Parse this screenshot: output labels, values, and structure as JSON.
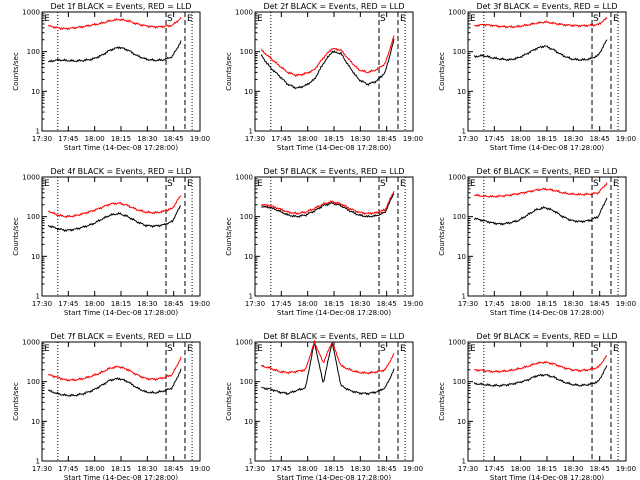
{
  "chart_data": [
    {
      "type": "line",
      "title": "Det 1f BLACK = Events, RED = LLD",
      "xlabel": "Start Time (14-Dec-08 17:28:00)",
      "ylabel": "Counts/sec",
      "yscale": "log",
      "ylim": [
        1,
        1000
      ],
      "x_ticks": [
        "17:30",
        "17:45",
        "18:00",
        "18:15",
        "18:30",
        "18:45",
        "19:00"
      ],
      "y_ticks": [
        "1",
        "10",
        "100",
        "1000"
      ],
      "markers": {
        "E_left": "E",
        "S": "S",
        "E_right": "E"
      },
      "series": [
        {
          "color": "#000000",
          "values": [
            55,
            62,
            60,
            58,
            60,
            65,
            80,
            110,
            130,
            110,
            80,
            65,
            60,
            62,
            75,
            180
          ]
        },
        {
          "color": "#ff0000",
          "values": [
            450,
            400,
            380,
            400,
            430,
            470,
            520,
            600,
            650,
            600,
            500,
            450,
            420,
            430,
            460,
            700
          ]
        }
      ]
    },
    {
      "type": "line",
      "title": "Det 2f BLACK = Events, RED = LLD",
      "xlabel": "Start Time (14-Dec-08 17:28:00)",
      "ylabel": "Counts/sec",
      "yscale": "log",
      "ylim": [
        1,
        1000
      ],
      "x_ticks": [
        "17:30",
        "17:45",
        "18:00",
        "18:15",
        "18:30",
        "18:45",
        "19:00"
      ],
      "y_ticks": [
        "1",
        "10",
        "100",
        "1000"
      ],
      "markers": {
        "E_left": "E",
        "S": "S",
        "E_right": "E"
      },
      "series": [
        {
          "color": "#000000",
          "values": [
            80,
            40,
            25,
            15,
            12,
            14,
            20,
            50,
            100,
            90,
            40,
            20,
            15,
            18,
            30,
            200
          ]
        },
        {
          "color": "#ff0000",
          "values": [
            110,
            70,
            45,
            30,
            25,
            28,
            35,
            70,
            120,
            110,
            60,
            35,
            30,
            35,
            50,
            250
          ]
        }
      ]
    },
    {
      "type": "line",
      "title": "Det 3f BLACK = Events, RED = LLD",
      "xlabel": "Start Time (14-Dec-08 17:28:00)",
      "ylabel": "Counts/sec",
      "yscale": "log",
      "ylim": [
        1,
        1000
      ],
      "x_ticks": [
        "17:30",
        "17:45",
        "18:00",
        "18:15",
        "18:30",
        "18:45",
        "19:00"
      ],
      "y_ticks": [
        "1",
        "10",
        "100",
        "1000"
      ],
      "markers": {
        "E_left": "E",
        "S": "S",
        "E_right": "E"
      },
      "series": [
        {
          "color": "#000000",
          "values": [
            75,
            80,
            70,
            65,
            62,
            70,
            90,
            120,
            140,
            110,
            80,
            65,
            62,
            65,
            80,
            200
          ]
        },
        {
          "color": "#ff0000",
          "values": [
            450,
            480,
            460,
            430,
            420,
            430,
            470,
            520,
            560,
            520,
            480,
            460,
            450,
            460,
            480,
            700
          ]
        }
      ]
    },
    {
      "type": "line",
      "title": "Det 4f BLACK = Events, RED = LLD",
      "xlabel": "Start Time (14-Dec-08 17:28:00)",
      "ylabel": "Counts/sec",
      "yscale": "log",
      "ylim": [
        1,
        1000
      ],
      "x_ticks": [
        "17:30",
        "17:45",
        "18:00",
        "18:15",
        "18:30",
        "18:45",
        "19:00"
      ],
      "y_ticks": [
        "1",
        "10",
        "100",
        "1000"
      ],
      "markers": {
        "E_left": "E",
        "S": "S",
        "E_right": "E"
      },
      "series": [
        {
          "color": "#000000",
          "values": [
            60,
            50,
            45,
            48,
            55,
            65,
            85,
            110,
            120,
            100,
            75,
            60,
            58,
            62,
            75,
            200
          ]
        },
        {
          "color": "#ff0000",
          "values": [
            140,
            110,
            100,
            105,
            120,
            140,
            170,
            210,
            220,
            190,
            150,
            130,
            125,
            135,
            160,
            350
          ]
        }
      ]
    },
    {
      "type": "line",
      "title": "Det 5f BLACK = Events, RED = LLD",
      "xlabel": "Start Time (14-Dec-08 17:28:00)",
      "ylabel": "Counts/sec",
      "yscale": "log",
      "ylim": [
        1,
        1000
      ],
      "x_ticks": [
        "17:30",
        "17:45",
        "18:00",
        "18:15",
        "18:30",
        "18:45",
        "19:00"
      ],
      "y_ticks": [
        "1",
        "10",
        "100",
        "1000"
      ],
      "markers": {
        "E_left": "E",
        "S": "S",
        "E_right": "E"
      },
      "series": [
        {
          "color": "#000000",
          "values": [
            180,
            170,
            140,
            110,
            100,
            110,
            140,
            190,
            220,
            190,
            140,
            110,
            100,
            105,
            130,
            400
          ]
        },
        {
          "color": "#ff0000",
          "values": [
            200,
            190,
            160,
            130,
            120,
            130,
            160,
            210,
            240,
            210,
            160,
            130,
            120,
            125,
            150,
            450
          ]
        }
      ]
    },
    {
      "type": "line",
      "title": "Det 6f BLACK = Events, RED = LLD",
      "xlabel": "Start Time (14-Dec-08 17:28:00)",
      "ylabel": "Counts/sec",
      "yscale": "log",
      "ylim": [
        1,
        1000
      ],
      "x_ticks": [
        "17:30",
        "17:45",
        "18:00",
        "18:15",
        "18:30",
        "18:45",
        "19:00"
      ],
      "y_ticks": [
        "1",
        "10",
        "100",
        "1000"
      ],
      "markers": {
        "E_left": "E",
        "S": "S",
        "E_right": "E"
      },
      "series": [
        {
          "color": "#000000",
          "values": [
            90,
            80,
            70,
            65,
            70,
            80,
            110,
            150,
            170,
            140,
            100,
            80,
            75,
            80,
            100,
            300
          ]
        },
        {
          "color": "#ff0000",
          "values": [
            350,
            330,
            320,
            330,
            350,
            380,
            420,
            470,
            500,
            460,
            400,
            370,
            360,
            370,
            400,
            700
          ]
        }
      ]
    },
    {
      "type": "line",
      "title": "Det 7f BLACK = Events, RED = LLD",
      "xlabel": "Start Time (14-Dec-08 17:28:00)",
      "ylabel": "Counts/sec",
      "yscale": "log",
      "ylim": [
        1,
        1000
      ],
      "x_ticks": [
        "17:30",
        "17:45",
        "18:00",
        "18:15",
        "18:30",
        "18:45",
        "19:00"
      ],
      "y_ticks": [
        "1",
        "10",
        "100",
        "1000"
      ],
      "markers": {
        "E_left": "E",
        "S": "S",
        "E_right": "E"
      },
      "series": [
        {
          "color": "#000000",
          "values": [
            60,
            50,
            45,
            45,
            50,
            60,
            80,
            110,
            120,
            100,
            70,
            55,
            52,
            58,
            70,
            200
          ]
        },
        {
          "color": "#ff0000",
          "values": [
            150,
            130,
            110,
            110,
            120,
            140,
            170,
            220,
            240,
            200,
            150,
            120,
            115,
            125,
            150,
            400
          ]
        }
      ]
    },
    {
      "type": "line",
      "title": "Det 8f BLACK = Events, RED = LLD",
      "xlabel": "Start Time (14-Dec-08 17:28:00)",
      "ylabel": "Counts/sec",
      "yscale": "log",
      "ylim": [
        1,
        1000
      ],
      "x_ticks": [
        "17:30",
        "17:45",
        "18:00",
        "18:15",
        "18:30",
        "18:45",
        "19:00"
      ],
      "y_ticks": [
        "1",
        "10",
        "100",
        "1000"
      ],
      "markers": {
        "E_left": "E",
        "S": "S",
        "E_right": "E"
      },
      "series": [
        {
          "color": "#000000",
          "values": [
            70,
            65,
            55,
            50,
            60,
            70,
            1000,
            90,
            1000,
            80,
            60,
            52,
            50,
            55,
            70,
            200
          ]
        },
        {
          "color": "#ff0000",
          "values": [
            250,
            220,
            180,
            170,
            180,
            200,
            1000,
            300,
            1000,
            250,
            200,
            170,
            165,
            175,
            200,
            500
          ]
        }
      ]
    },
    {
      "type": "line",
      "title": "Det 9f BLACK = Events, RED = LLD",
      "xlabel": "Start Time (14-Dec-08 17:28:00)",
      "ylabel": "Counts/sec",
      "yscale": "log",
      "ylim": [
        1,
        1000
      ],
      "x_ticks": [
        "17:30",
        "17:45",
        "18:00",
        "18:15",
        "18:30",
        "18:45",
        "19:00"
      ],
      "y_ticks": [
        "1",
        "10",
        "100",
        "1000"
      ],
      "markers": {
        "E_left": "E",
        "S": "S",
        "E_right": "E"
      },
      "series": [
        {
          "color": "#000000",
          "values": [
            90,
            85,
            80,
            80,
            85,
            95,
            110,
            140,
            150,
            130,
            100,
            85,
            80,
            85,
            100,
            250
          ]
        },
        {
          "color": "#ff0000",
          "values": [
            200,
            190,
            180,
            180,
            190,
            210,
            240,
            290,
            310,
            280,
            230,
            200,
            190,
            200,
            230,
            450
          ]
        }
      ]
    }
  ]
}
